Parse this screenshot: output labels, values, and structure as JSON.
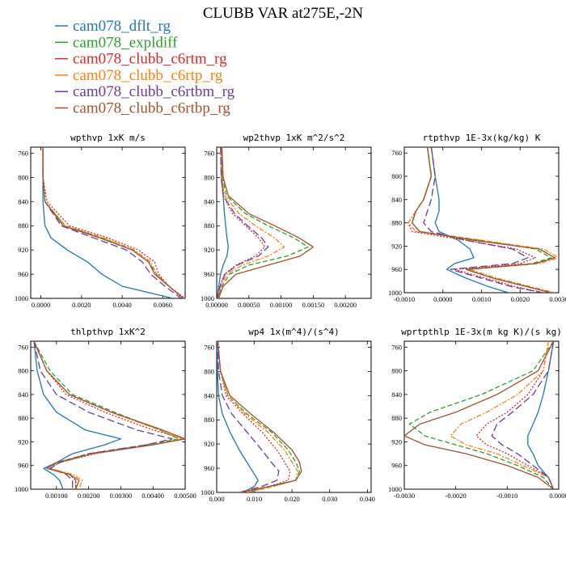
{
  "figure": {
    "title": "CLUBB VAR at275E,-2N"
  },
  "legend": [
    {
      "name": "cam078_dflt_rg",
      "color": "#1f77b4",
      "dash": "solid"
    },
    {
      "name": "cam078_expldiff",
      "color": "#2ca02c",
      "dash": "dashed"
    },
    {
      "name": "cam078_clubb_c6rtm_rg",
      "color": "#d62728",
      "dash": "dotted"
    },
    {
      "name": "cam078_clubb_c6rtp_rg",
      "color": "#ff7f0e",
      "dash": "dashdot"
    },
    {
      "name": "cam078_clubb_c6rtbm_rg",
      "color": "#6a3d9a",
      "dash": "longdash"
    },
    {
      "name": "cam078_clubb_c6rtbp_rg",
      "color": "#a0522d",
      "dash": "solid"
    }
  ],
  "chart_data": [
    {
      "type": "line",
      "title": "wpthvp  1xK m/s",
      "xlim": [
        -0.0005,
        0.0071
      ],
      "ylim": [
        1000,
        750
      ],
      "xticks": [
        "0.0000",
        "0.0020",
        "0.0040",
        "0.0060"
      ],
      "xtick_values": [
        0,
        0.002,
        0.004,
        0.006
      ],
      "yticks": [
        760,
        800,
        840,
        880,
        920,
        960,
        1000
      ],
      "y": [
        750,
        800,
        840,
        880,
        900,
        920,
        940,
        960,
        980,
        1000
      ],
      "series": [
        {
          "name": "cam078_dflt_rg",
          "values": [
            0.0001,
            0.0001,
            0.0001,
            0.0002,
            0.0005,
            0.0013,
            0.0023,
            0.003,
            0.004,
            0.0065
          ]
        },
        {
          "name": "cam078_expldiff",
          "values": [
            0.0001,
            0.0001,
            0.0002,
            0.0012,
            0.003,
            0.0045,
            0.0053,
            0.0057,
            0.0063,
            0.007
          ]
        },
        {
          "name": "cam078_clubb_c6rtm_rg",
          "values": [
            0.0001,
            0.0001,
            0.0003,
            0.0014,
            0.0033,
            0.0048,
            0.0056,
            0.0058,
            0.0063,
            0.0071
          ]
        },
        {
          "name": "cam078_clubb_c6rtp_rg",
          "values": [
            0.0001,
            0.0001,
            0.0002,
            0.0012,
            0.0031,
            0.0046,
            0.0054,
            0.0057,
            0.0063,
            0.007
          ]
        },
        {
          "name": "cam078_clubb_c6rtbm_rg",
          "values": [
            0.0001,
            0.0001,
            0.0002,
            0.001,
            0.0026,
            0.0042,
            0.005,
            0.0054,
            0.0061,
            0.0069
          ]
        },
        {
          "name": "cam078_clubb_c6rtbp_rg",
          "values": [
            0.0001,
            0.0001,
            0.0002,
            0.0011,
            0.0029,
            0.0045,
            0.0053,
            0.0056,
            0.0063,
            0.007
          ]
        }
      ]
    },
    {
      "type": "line",
      "title": "wp2thvp  1xK m^2/s^2",
      "xlim": [
        0,
        0.0024
      ],
      "ylim": [
        1000,
        750
      ],
      "xticks": [
        "0.00000",
        "0.00050",
        "0.00100",
        "0.00150",
        "0.00200"
      ],
      "xtick_values": [
        0,
        0.0005,
        0.001,
        0.0015,
        0.002
      ],
      "yticks": [
        760,
        800,
        840,
        880,
        920,
        960,
        1000
      ],
      "y": [
        750,
        800,
        830,
        860,
        880,
        900,
        915,
        930,
        945,
        960,
        980,
        1000
      ],
      "series": [
        {
          "name": "cam078_dflt_rg",
          "values": [
            8e-05,
            8e-05,
            0.0001,
            0.00012,
            0.00014,
            0.00016,
            0.00018,
            0.00016,
            0.0001,
            6e-05,
            3e-05,
            1e-05
          ]
        },
        {
          "name": "cam078_expldiff",
          "values": [
            8e-05,
            9e-05,
            0.00015,
            0.00045,
            0.0008,
            0.0012,
            0.00142,
            0.0011,
            0.0005,
            0.0002,
            8e-05,
            2e-05
          ]
        },
        {
          "name": "cam078_clubb_c6rtm_rg",
          "values": [
            6e-05,
            7e-05,
            0.0001,
            0.00025,
            0.00045,
            0.00065,
            0.00075,
            0.0006,
            0.0003,
            0.00012,
            5e-05,
            1e-05
          ]
        },
        {
          "name": "cam078_clubb_c6rtp_rg",
          "values": [
            7e-05,
            8e-05,
            0.00012,
            0.00035,
            0.0006,
            0.0009,
            0.00105,
            0.0008,
            0.0004,
            0.00016,
            6e-05,
            2e-05
          ]
        },
        {
          "name": "cam078_clubb_c6rtbm_rg",
          "values": [
            6e-05,
            7e-05,
            0.0001,
            0.00028,
            0.00048,
            0.0007,
            0.0008,
            0.00065,
            0.00032,
            0.00013,
            5e-05,
            1e-05
          ]
        },
        {
          "name": "cam078_clubb_c6rtbp_rg",
          "values": [
            8e-05,
            0.0001,
            0.00018,
            0.0005,
            0.0009,
            0.00128,
            0.0015,
            0.0013,
            0.0008,
            0.0003,
            0.0001,
            3e-05
          ]
        }
      ]
    },
    {
      "type": "line",
      "title": "rtpthvp  1E-3x(kg/kg) K",
      "xlim": [
        -0.001,
        0.003
      ],
      "ylim": [
        1000,
        750
      ],
      "xticks": [
        "-0.0010",
        "0.0000",
        "0.0010",
        "0.0020",
        "0.0030"
      ],
      "xtick_values": [
        -0.001,
        0,
        0.001,
        0.002,
        0.003
      ],
      "yticks": [
        760,
        800,
        840,
        880,
        920,
        960,
        1000
      ],
      "y": [
        750,
        800,
        840,
        860,
        880,
        895,
        910,
        925,
        940,
        950,
        960,
        975,
        990,
        1000
      ],
      "series": [
        {
          "name": "cam078_dflt_rg",
          "values": [
            -0.0003,
            -0.0002,
            -0.0001,
            -0.0001,
            -0.0002,
            -0.0001,
            0.0004,
            0.0007,
            0.0008,
            0.0003,
            0.0001,
            0.0006,
            0.0012,
            0.0017
          ]
        },
        {
          "name": "cam078_expldiff",
          "values": [
            -0.0004,
            -0.0003,
            -0.0005,
            -0.0007,
            -0.0008,
            -0.0006,
            0.001,
            0.0024,
            0.0028,
            0.0023,
            0.0006,
            0.0013,
            0.0022,
            0.0028
          ]
        },
        {
          "name": "cam078_clubb_c6rtm_rg",
          "values": [
            -0.0004,
            -0.0003,
            -0.0005,
            -0.0007,
            -0.0009,
            -0.0008,
            0.0006,
            0.0019,
            0.0024,
            0.002,
            0.0003,
            0.0011,
            0.0019,
            0.0026
          ]
        },
        {
          "name": "cam078_clubb_c6rtp_rg",
          "values": [
            -0.0004,
            -0.0003,
            -0.0005,
            -0.0007,
            -0.0009,
            -0.0007,
            0.001,
            0.0026,
            0.003,
            0.0025,
            0.0007,
            0.0014,
            0.0023,
            0.0029
          ]
        },
        {
          "name": "cam078_clubb_c6rtbm_rg",
          "values": [
            -0.0003,
            -0.0002,
            -0.0003,
            -0.0004,
            -0.0005,
            -0.0003,
            0.0006,
            0.0018,
            0.0022,
            0.0018,
            0.0002,
            0.001,
            0.0018,
            0.0026
          ]
        },
        {
          "name": "cam078_clubb_c6rtbp_rg",
          "values": [
            -0.0004,
            -0.0003,
            -0.0005,
            -0.0007,
            -0.0008,
            -0.0006,
            0.0008,
            0.0025,
            0.0029,
            0.0024,
            0.0006,
            0.0013,
            0.0022,
            0.0028
          ]
        }
      ]
    },
    {
      "type": "line",
      "title": "thlpthvp  1xK^2",
      "xlim": [
        0.0002,
        0.005
      ],
      "ylim": [
        1000,
        750
      ],
      "xticks": [
        "0.00100",
        "0.00200",
        "0.00300",
        "0.00400",
        "0.00500"
      ],
      "xtick_values": [
        0.001,
        0.002,
        0.003,
        0.004,
        0.005
      ],
      "yticks": [
        760,
        800,
        840,
        880,
        920,
        960,
        1000
      ],
      "y": [
        750,
        800,
        840,
        870,
        900,
        915,
        925,
        940,
        955,
        965,
        975,
        985,
        1000
      ],
      "series": [
        {
          "name": "cam078_dflt_rg",
          "values": [
            0.0003,
            0.0004,
            0.0006,
            0.001,
            0.0019,
            0.003,
            0.0025,
            0.0015,
            0.001,
            0.0006,
            0.0009,
            0.0011,
            0.0012
          ]
        },
        {
          "name": "cam078_expldiff",
          "values": [
            0.0003,
            0.0008,
            0.0015,
            0.0028,
            0.0042,
            0.0048,
            0.0038,
            0.002,
            0.001,
            0.0008,
            0.0014,
            0.0016,
            0.0016
          ]
        },
        {
          "name": "cam078_clubb_c6rtm_rg",
          "values": [
            0.0003,
            0.0007,
            0.0013,
            0.0025,
            0.004,
            0.005,
            0.004,
            0.0022,
            0.0011,
            0.0008,
            0.0014,
            0.0016,
            0.0016
          ]
        },
        {
          "name": "cam078_clubb_c6rtp_rg",
          "values": [
            0.0003,
            0.0007,
            0.0014,
            0.0027,
            0.0042,
            0.0049,
            0.004,
            0.0021,
            0.0011,
            0.0008,
            0.0015,
            0.0018,
            0.0017
          ]
        },
        {
          "name": "cam078_clubb_c6rtbm_rg",
          "values": [
            0.0003,
            0.0005,
            0.001,
            0.002,
            0.0035,
            0.0046,
            0.0038,
            0.002,
            0.0011,
            0.0008,
            0.0013,
            0.0015,
            0.0015
          ]
        },
        {
          "name": "cam078_clubb_c6rtbp_rg",
          "values": [
            0.0003,
            0.0007,
            0.0014,
            0.0027,
            0.0043,
            0.005,
            0.004,
            0.0021,
            0.001,
            0.0007,
            0.0014,
            0.0017,
            0.0016
          ]
        }
      ]
    },
    {
      "type": "line",
      "title": "wp4  1x(m^4)/(s^4)",
      "xlim": [
        0,
        0.041
      ],
      "ylim": [
        1000,
        750
      ],
      "xticks": [
        "0.000",
        "0.010",
        "0.020",
        "0.030",
        "0.040"
      ],
      "xtick_values": [
        0,
        0.01,
        0.02,
        0.03,
        0.04
      ],
      "yticks": [
        760,
        800,
        840,
        880,
        920,
        960,
        1000
      ],
      "y": [
        750,
        800,
        840,
        870,
        900,
        930,
        950,
        965,
        980,
        990,
        1000
      ],
      "series": [
        {
          "name": "cam078_dflt_rg",
          "values": [
            0.0001,
            0.0002,
            0.0005,
            0.0015,
            0.0035,
            0.006,
            0.008,
            0.0095,
            0.011,
            0.01,
            0.007
          ]
        },
        {
          "name": "cam078_expldiff",
          "values": [
            0.0003,
            0.001,
            0.003,
            0.008,
            0.0145,
            0.019,
            0.021,
            0.022,
            0.021,
            0.015,
            0.008
          ]
        },
        {
          "name": "cam078_clubb_c6rtm_rg",
          "values": [
            0.0003,
            0.001,
            0.0025,
            0.007,
            0.012,
            0.016,
            0.018,
            0.0195,
            0.019,
            0.014,
            0.007
          ]
        },
        {
          "name": "cam078_clubb_c6rtp_rg",
          "values": [
            0.0003,
            0.001,
            0.003,
            0.0075,
            0.0135,
            0.018,
            0.02,
            0.0215,
            0.021,
            0.015,
            0.008
          ]
        },
        {
          "name": "cam078_clubb_c6rtbm_rg",
          "values": [
            0.0002,
            0.0005,
            0.0015,
            0.004,
            0.008,
            0.012,
            0.0145,
            0.0165,
            0.016,
            0.012,
            0.006
          ]
        },
        {
          "name": "cam078_clubb_c6rtbp_rg",
          "values": [
            0.0003,
            0.001,
            0.0035,
            0.009,
            0.015,
            0.02,
            0.022,
            0.0225,
            0.021,
            0.014,
            0.006
          ]
        }
      ]
    },
    {
      "type": "line",
      "title": "wprtpthlp  1E-3x(m kg K)/(s kg)",
      "xlim": [
        -0.003,
        0
      ],
      "ylim": [
        1000,
        750
      ],
      "xticks": [
        "-0.0030",
        "-0.0020",
        "-0.0010",
        "0.0000"
      ],
      "xtick_values": [
        -0.003,
        -0.002,
        -0.001,
        0
      ],
      "yticks": [
        760,
        800,
        840,
        880,
        920,
        960,
        1000
      ],
      "y": [
        750,
        800,
        840,
        870,
        890,
        910,
        925,
        940,
        960,
        980,
        1000
      ],
      "series": [
        {
          "name": "cam078_dflt_rg",
          "values": [
            -0.0001,
            -0.0002,
            -0.0003,
            -0.0004,
            -0.0005,
            -0.0006,
            -0.0006,
            -0.0005,
            -0.0004,
            -0.0002,
            -0.0001
          ]
        },
        {
          "name": "cam078_expldiff",
          "values": [
            -0.0001,
            -0.0005,
            -0.0015,
            -0.0025,
            -0.0029,
            -0.0026,
            -0.002,
            -0.0014,
            -0.0008,
            -0.0003,
            -0.0001
          ]
        },
        {
          "name": "cam078_clubb_c6rtm_rg",
          "values": [
            -0.0002,
            -0.0003,
            -0.0006,
            -0.001,
            -0.0014,
            -0.0016,
            -0.0014,
            -0.001,
            -0.0006,
            -0.0002,
            -0.0001
          ]
        },
        {
          "name": "cam078_clubb_c6rtp_rg",
          "values": [
            -0.0002,
            -0.0003,
            -0.0008,
            -0.0014,
            -0.0019,
            -0.0021,
            -0.0018,
            -0.0012,
            -0.0007,
            -0.0002,
            -0.0001
          ]
        },
        {
          "name": "cam078_clubb_c6rtbm_rg",
          "values": [
            -0.0001,
            -0.0002,
            -0.0005,
            -0.0009,
            -0.0012,
            -0.0013,
            -0.0011,
            -0.0008,
            -0.0005,
            -0.0002,
            -0.0001
          ]
        },
        {
          "name": "cam078_clubb_c6rtbp_rg",
          "values": [
            -0.0001,
            -0.0004,
            -0.0012,
            -0.002,
            -0.0027,
            -0.003,
            -0.0026,
            -0.0018,
            -0.001,
            -0.0004,
            -0.0001
          ]
        }
      ]
    }
  ]
}
